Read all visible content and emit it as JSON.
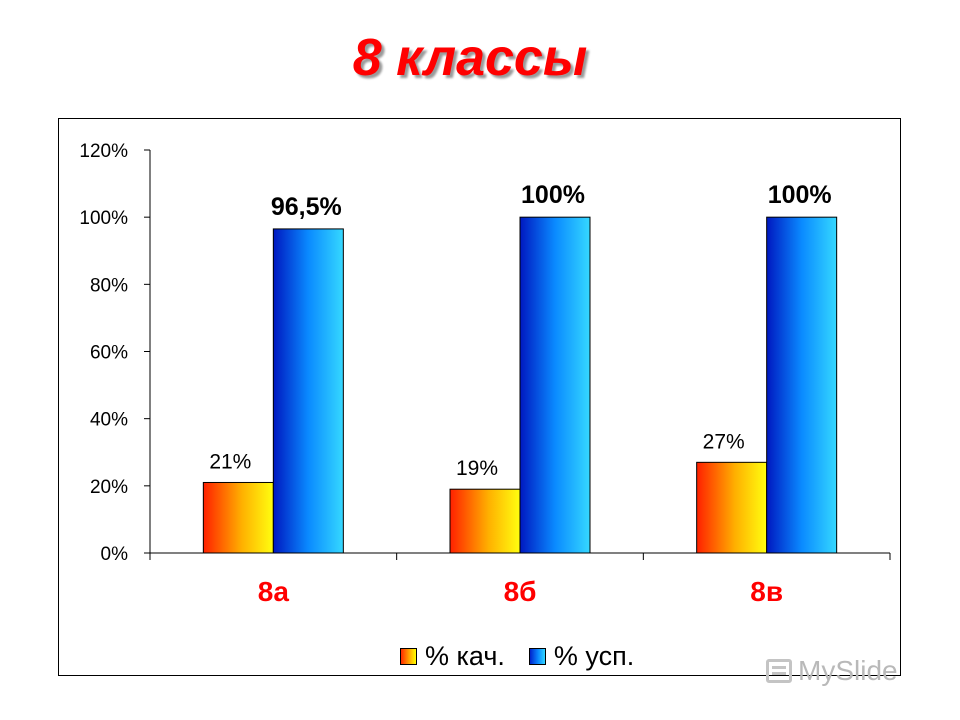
{
  "slide": {
    "title": "8 классы"
  },
  "colors": {
    "title": "#ff0000",
    "category_labels": "#ff0000",
    "series_1": "#ff8c00",
    "series_2": "#0a7cff"
  },
  "watermark": {
    "text": "MySlide",
    "icon": "presentation-board-icon"
  },
  "chart_data": {
    "type": "bar",
    "title": "",
    "xlabel": "",
    "ylabel": "",
    "categories": [
      "8а",
      "8б",
      "8в"
    ],
    "series": [
      {
        "name": "% кач.",
        "values": [
          21,
          19,
          27
        ],
        "labels": [
          "21%",
          "19%",
          "27%"
        ]
      },
      {
        "name": "% усп.",
        "values": [
          96.5,
          100,
          100
        ],
        "labels": [
          "96,5%",
          "100%",
          "100%"
        ]
      }
    ],
    "ylim": [
      0,
      120
    ],
    "yticks": [
      0,
      20,
      40,
      60,
      80,
      100,
      120
    ],
    "ytick_labels": [
      "0%",
      "20%",
      "40%",
      "60%",
      "80%",
      "100%",
      "120%"
    ],
    "grid": false,
    "legend_position": "bottom"
  }
}
